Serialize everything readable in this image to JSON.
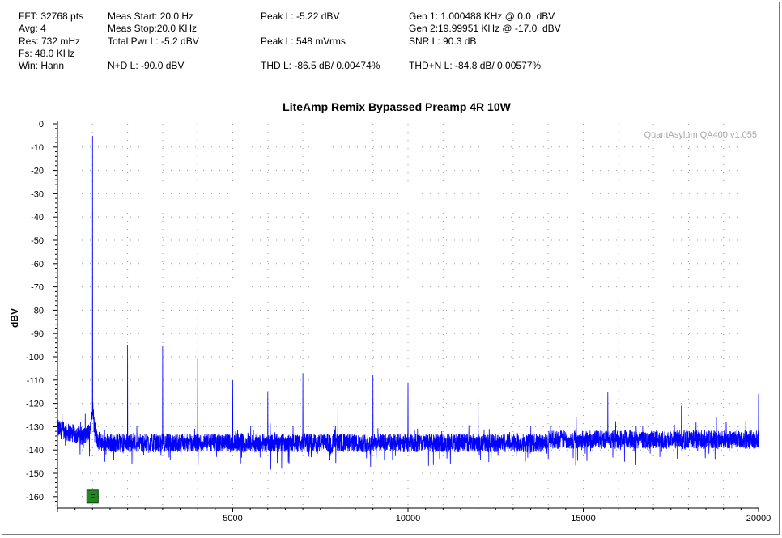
{
  "stats": {
    "fft": "FFT: 32768 pts",
    "avg": "Avg: 4",
    "res": "Res: 732 mHz",
    "fs": "Fs: 48.0 KHz",
    "win": "Win: Hann",
    "meas_start": "Meas Start: 20.0 Hz",
    "meas_stop": "Meas Stop:20.0 KHz",
    "total_pwr": "Total Pwr L: -5.2 dBV",
    "n_plus_d": "N+D L: -90.0 dBV",
    "peak_dbv": "Peak L: -5.22 dBV",
    "peak_mv": "Peak L: 548 mVrms",
    "thd": "THD L: -86.5 dB/ 0.00474%",
    "gen1": "Gen 1: 1.000488 KHz @ 0.0  dBV",
    "gen2": "Gen 2:19.99951 KHz @ -17.0  dBV",
    "snr": "SNR L: 90.3 dB",
    "thdn": "THD+N L: -84.8 dB/ 0.00577%"
  },
  "marker_label": "F",
  "chart_data": {
    "type": "line",
    "title": "LiteAmp Remix Bypassed Preamp 4R 10W",
    "watermark": "QuantAsylum QA400 v1.055",
    "ylabel": "dBV",
    "xlabel": "",
    "xlim": [
      0,
      20000
    ],
    "ylim": [
      -165,
      0
    ],
    "x_ticks": [
      "5000",
      "10000",
      "15000",
      "20000"
    ],
    "y_ticks": [
      "0",
      "-10",
      "-20",
      "-30",
      "-40",
      "-50",
      "-60",
      "-70",
      "-80",
      "-90",
      "-100",
      "-110",
      "-120",
      "-130",
      "-140",
      "-150",
      "-160"
    ],
    "grid": true,
    "line_color": "#0000ff",
    "noise_floor_db": -136,
    "fundamental": {
      "x": 1000,
      "y": -5.2
    },
    "harmonics": [
      {
        "x": 2000,
        "y": -95
      },
      {
        "x": 3000,
        "y": -95.5
      },
      {
        "x": 4000,
        "y": -101
      },
      {
        "x": 5000,
        "y": -110
      },
      {
        "x": 6000,
        "y": -115
      },
      {
        "x": 7000,
        "y": -107
      },
      {
        "x": 8000,
        "y": -119
      },
      {
        "x": 9000,
        "y": -108
      },
      {
        "x": 10000,
        "y": -111
      },
      {
        "x": 12000,
        "y": -116
      },
      {
        "x": 14800,
        "y": -126
      },
      {
        "x": 15700,
        "y": -115
      },
      {
        "x": 17800,
        "y": -121
      },
      {
        "x": 18800,
        "y": -126
      },
      {
        "x": 20000,
        "y": -116
      }
    ],
    "marker_x": 1000,
    "marker_y": -160
  }
}
